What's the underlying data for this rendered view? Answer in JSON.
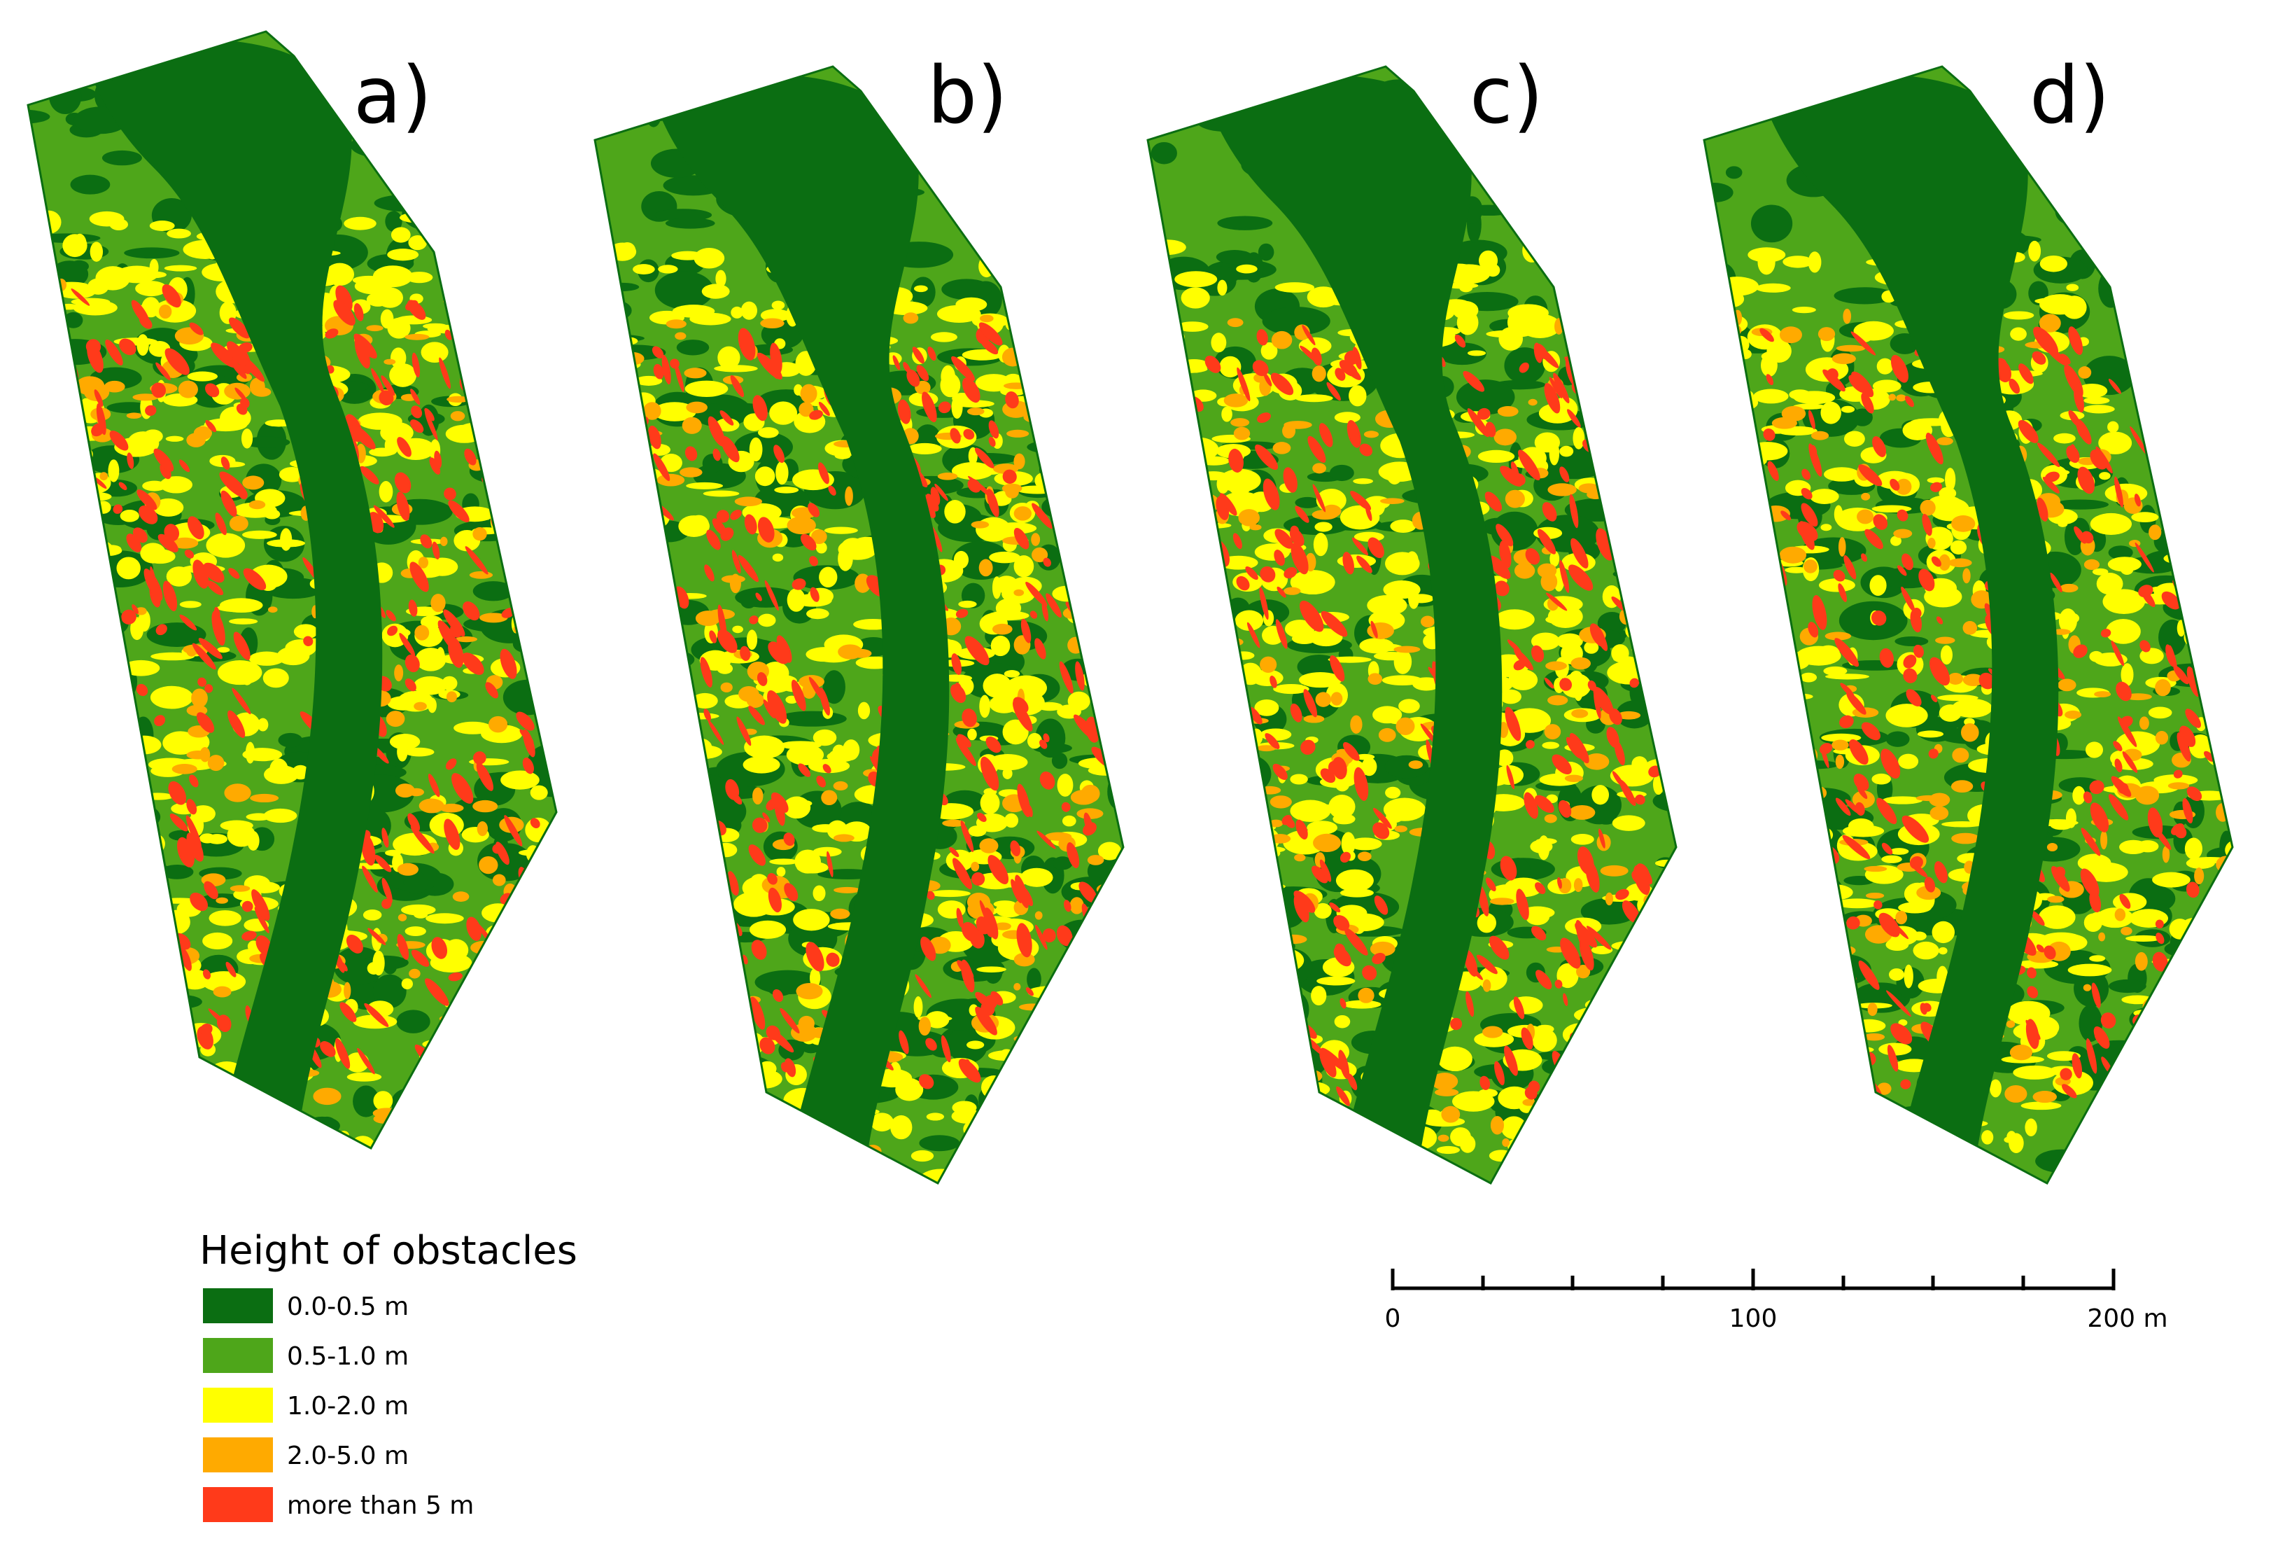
{
  "panels": [
    {
      "id": "a",
      "label": "a)"
    },
    {
      "id": "b",
      "label": "b)"
    },
    {
      "id": "c",
      "label": "c)"
    },
    {
      "id": "d",
      "label": "d)"
    }
  ],
  "legend": {
    "title": "Height of obstacles",
    "items": [
      {
        "label": "0.0-0.5 m",
        "color": "#0b6e12"
      },
      {
        "label": "0.5-1.0 m",
        "color": "#4ea61a"
      },
      {
        "label": "1.0-2.0 m",
        "color": "#ffff00"
      },
      {
        "label": "2.0-5.0 m",
        "color": "#ffaa00"
      },
      {
        "label": "more than 5 m",
        "color": "#ff3a1a"
      }
    ]
  },
  "scalebar": {
    "labels": [
      "0",
      "100",
      "200 m"
    ]
  }
}
